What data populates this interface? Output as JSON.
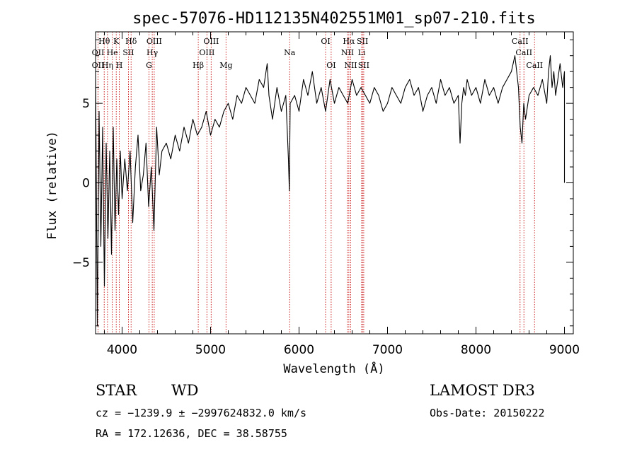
{
  "title": "spec-57076-HD112135N402551M01_sp07-210.fits",
  "footer": {
    "class_label": "STAR",
    "subclass_label": "WD",
    "survey": "LAMOST DR3",
    "cz_line": "cz = −1239.9 ± −2997624832.0 km/s",
    "obs_date": "Obs-Date: 20150222",
    "radec_line": "RA = 172.12636, DEC =  38.58755"
  },
  "chart_data": {
    "type": "line",
    "title": "spec-57076-HD112135N402551M01_sp07-210.fits",
    "xlabel": "Wavelength (Å)",
    "ylabel": "Flux (relative)",
    "xlim": [
      3700,
      9100
    ],
    "ylim": [
      -9.5,
      9.5
    ],
    "x_ticks": [
      4000,
      5000,
      6000,
      7000,
      8000,
      9000
    ],
    "x_tick_labels": [
      "4000",
      "5000",
      "6000",
      "7000",
      "8000",
      "9000"
    ],
    "y_ticks": [
      -5,
      0,
      5
    ],
    "y_tick_labels": [
      "−5",
      "0",
      "5"
    ],
    "line_color": "#000000",
    "marker_color": "#cc2222",
    "spectrum": {
      "x": [
        3700,
        3720,
        3740,
        3760,
        3780,
        3800,
        3820,
        3840,
        3860,
        3880,
        3900,
        3920,
        3940,
        3960,
        3980,
        4000,
        4030,
        4060,
        4090,
        4120,
        4150,
        4180,
        4210,
        4240,
        4270,
        4300,
        4330,
        4360,
        4390,
        4420,
        4450,
        4500,
        4550,
        4600,
        4650,
        4700,
        4750,
        4800,
        4850,
        4900,
        4950,
        5000,
        5050,
        5100,
        5150,
        5200,
        5250,
        5300,
        5350,
        5400,
        5450,
        5500,
        5550,
        5600,
        5640,
        5660,
        5700,
        5750,
        5800,
        5850,
        5880,
        5890,
        5900,
        5950,
        6000,
        6050,
        6100,
        6150,
        6200,
        6250,
        6300,
        6350,
        6400,
        6450,
        6500,
        6550,
        6600,
        6650,
        6700,
        6750,
        6800,
        6850,
        6900,
        6950,
        7000,
        7050,
        7100,
        7150,
        7200,
        7250,
        7300,
        7350,
        7400,
        7450,
        7500,
        7550,
        7600,
        7650,
        7700,
        7750,
        7800,
        7820,
        7840,
        7860,
        7880,
        7900,
        7950,
        8000,
        8050,
        8100,
        8150,
        8200,
        8250,
        8300,
        8350,
        8400,
        8440,
        8480,
        8500,
        8520,
        8540,
        8560,
        8600,
        8650,
        8700,
        8750,
        8800,
        8820,
        8840,
        8860,
        8880,
        8900,
        8950,
        8980,
        9000,
        9000
      ],
      "y": [
        7.0,
        -9.0,
        4.5,
        -4.0,
        3.5,
        -6.5,
        2.5,
        -3.5,
        2.0,
        -4.5,
        3.5,
        -3.0,
        1.5,
        -2.0,
        2.0,
        -1.0,
        1.5,
        -0.5,
        2.0,
        -2.5,
        1.0,
        3.0,
        -0.5,
        0.5,
        2.5,
        -1.5,
        1.0,
        -3.0,
        3.5,
        0.5,
        2.0,
        2.5,
        1.5,
        3.0,
        2.0,
        3.5,
        2.5,
        4.0,
        3.0,
        3.5,
        4.5,
        3.0,
        4.0,
        3.5,
        4.5,
        5.0,
        4.0,
        5.5,
        5.0,
        6.0,
        5.5,
        5.0,
        6.5,
        6.0,
        7.5,
        5.5,
        4.0,
        6.0,
        4.5,
        5.5,
        1.5,
        -0.5,
        5.0,
        5.5,
        4.5,
        6.5,
        5.5,
        7.0,
        5.0,
        6.0,
        4.5,
        6.5,
        5.0,
        6.0,
        5.5,
        5.0,
        6.5,
        5.5,
        6.0,
        5.5,
        5.0,
        6.0,
        5.5,
        4.5,
        5.0,
        6.0,
        5.5,
        5.0,
        6.0,
        6.5,
        5.5,
        6.0,
        4.5,
        5.5,
        6.0,
        5.0,
        6.5,
        5.5,
        6.0,
        5.0,
        5.5,
        2.5,
        5.0,
        6.0,
        5.5,
        6.5,
        5.5,
        6.0,
        5.0,
        6.5,
        5.5,
        6.0,
        5.0,
        6.0,
        6.5,
        7.0,
        8.0,
        6.0,
        3.5,
        2.5,
        5.0,
        4.0,
        5.5,
        6.0,
        5.5,
        6.5,
        5.0,
        7.0,
        8.0,
        6.0,
        7.0,
        5.5,
        7.5,
        6.0,
        7.0,
        0.0
      ]
    },
    "line_markers": [
      {
        "label": "Hθ",
        "x": 3798,
        "row": 0
      },
      {
        "label": "OII",
        "x": 3728,
        "row": 1
      },
      {
        "label": "OII",
        "x": 3728,
        "row": 2
      },
      {
        "label": "He",
        "x": 3889,
        "row": 1
      },
      {
        "label": "Hη",
        "x": 3835,
        "row": 2
      },
      {
        "label": "K",
        "x": 3934,
        "row": 0
      },
      {
        "label": "H",
        "x": 3968,
        "row": 2
      },
      {
        "label": "SII",
        "x": 4072,
        "row": 1
      },
      {
        "label": "Hδ",
        "x": 4102,
        "row": 0
      },
      {
        "label": "OIII",
        "x": 4363,
        "row": 0
      },
      {
        "label": "Hγ",
        "x": 4341,
        "row": 1
      },
      {
        "label": "G",
        "x": 4304,
        "row": 2
      },
      {
        "label": "Hβ",
        "x": 4861,
        "row": 2
      },
      {
        "label": "OIII",
        "x": 5007,
        "row": 0
      },
      {
        "label": "OIII",
        "x": 4959,
        "row": 1
      },
      {
        "label": "Mg",
        "x": 5175,
        "row": 2
      },
      {
        "label": "Na",
        "x": 5894,
        "row": 1
      },
      {
        "label": "OI",
        "x": 6300,
        "row": 0
      },
      {
        "label": "OI",
        "x": 6363,
        "row": 2
      },
      {
        "label": "Hα",
        "x": 6563,
        "row": 0
      },
      {
        "label": "NII",
        "x": 6548,
        "row": 1
      },
      {
        "label": "NII",
        "x": 6584,
        "row": 2
      },
      {
        "label": "SII",
        "x": 6717,
        "row": 0
      },
      {
        "label": "Li",
        "x": 6708,
        "row": 1
      },
      {
        "label": "SII",
        "x": 6731,
        "row": 2
      },
      {
        "label": "CaII",
        "x": 8498,
        "row": 0
      },
      {
        "label": "CaII",
        "x": 8542,
        "row": 1
      },
      {
        "label": "CaII",
        "x": 8662,
        "row": 2
      }
    ]
  }
}
